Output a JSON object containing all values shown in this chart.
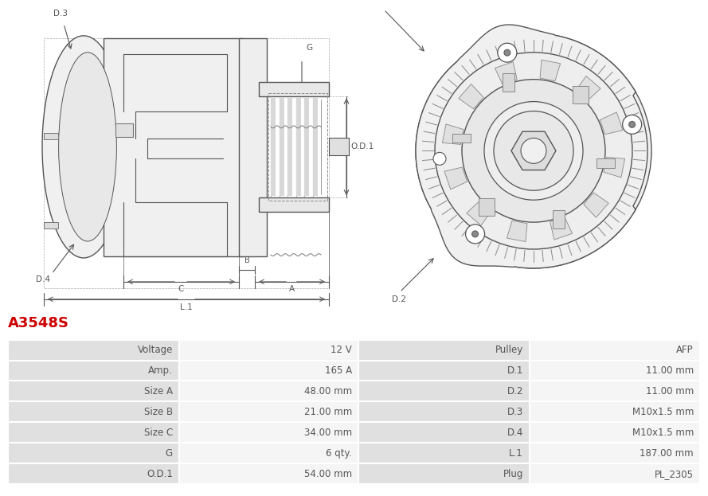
{
  "title": "A3548S",
  "title_color": "#cc0000",
  "title_fontsize": 13,
  "table_rows": [
    [
      "Voltage",
      "12 V",
      "Pulley",
      "AFP"
    ],
    [
      "Amp.",
      "165 A",
      "D.1",
      "11.00 mm"
    ],
    [
      "Size A",
      "48.00 mm",
      "D.2",
      "11.00 mm"
    ],
    [
      "Size B",
      "21.00 mm",
      "D.3",
      "M10x1.5 mm"
    ],
    [
      "Size C",
      "34.00 mm",
      "D.4",
      "M10x1.5 mm"
    ],
    [
      "G",
      "6 qty.",
      "L.1",
      "187.00 mm"
    ],
    [
      "O.D.1",
      "54.00 mm",
      "Plug",
      "PL_2305"
    ]
  ],
  "label_bg": "#e0e0e0",
  "value_bg": "#f5f5f5",
  "text_color": "#555555",
  "font_size": 8.5,
  "lc": "#555555",
  "lw": 1.0
}
